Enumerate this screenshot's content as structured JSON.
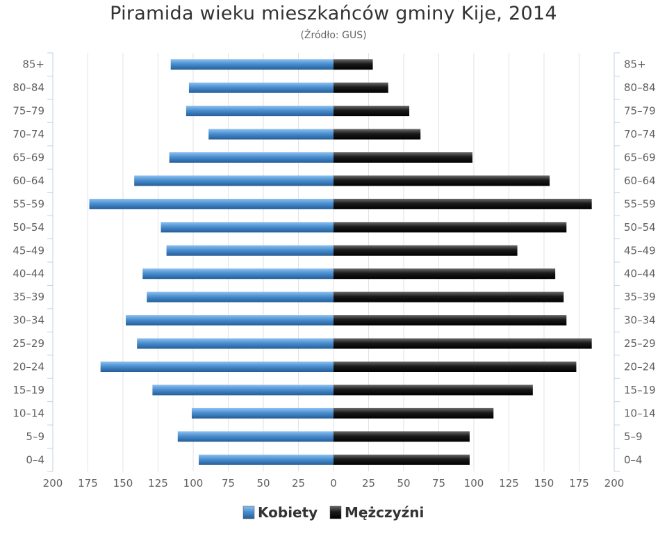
{
  "chart_data": {
    "type": "bar",
    "orientation": "horizontal",
    "layout": "population-pyramid",
    "title": "Piramida wieku mieszkańców gminy Kije, 2014",
    "subtitle": "(Źródło: GUS)",
    "categories": [
      "85+",
      "80-84",
      "75-79",
      "70-74",
      "65-69",
      "60-64",
      "55-59",
      "50-54",
      "45-49",
      "40-44",
      "35-39",
      "30-34",
      "25-29",
      "20-24",
      "15-19",
      "10-14",
      "5-9",
      "0-4"
    ],
    "series": [
      {
        "name": "Kobiety",
        "side": "left",
        "color": "#4a8fd1",
        "values": [
          116,
          103,
          105,
          89,
          117,
          142,
          174,
          123,
          119,
          136,
          133,
          148,
          140,
          166,
          129,
          101,
          111,
          96
        ]
      },
      {
        "name": "Mężczyźni",
        "side": "right",
        "color": "#1a1a1a",
        "values": [
          28,
          39,
          54,
          62,
          99,
          154,
          184,
          166,
          131,
          158,
          164,
          166,
          184,
          173,
          142,
          114,
          97,
          97
        ]
      }
    ],
    "xlim": [
      -200,
      200
    ],
    "xticks": [
      -200,
      -175,
      -150,
      -125,
      -100,
      -75,
      -50,
      -25,
      0,
      25,
      50,
      75,
      100,
      125,
      150,
      175,
      200
    ],
    "xtick_labels": [
      "200",
      "175",
      "150",
      "125",
      "100",
      "75",
      "50",
      "25",
      "0",
      "25",
      "50",
      "75",
      "100",
      "125",
      "150",
      "175",
      "200"
    ],
    "category_labels_both_sides": true,
    "grid": true,
    "legend_position": "bottom-center"
  }
}
